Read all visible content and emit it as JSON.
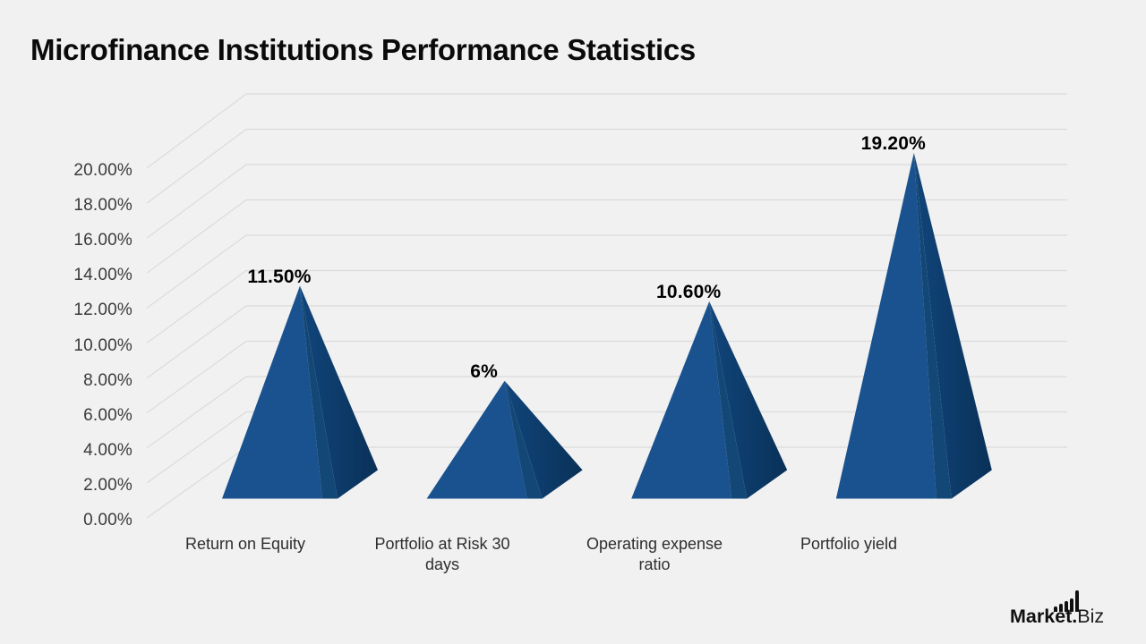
{
  "chart_data": {
    "type": "bar",
    "variant": "3d-pyramid",
    "title": "Microfinance Institutions Performance Statistics",
    "categories": [
      "Return on Equity",
      "Portfolio at Risk 30 days",
      "Operating expense ratio",
      "Portfolio yield"
    ],
    "values": [
      11.5,
      6,
      10.6,
      19.2
    ],
    "value_labels": [
      "11.50%",
      "6%",
      "10.60%",
      "19.20%"
    ],
    "xlabel": "",
    "ylabel": "",
    "ylim": [
      0,
      20
    ],
    "ytick_step": 2,
    "ytick_labels": [
      "0.00%",
      "2.00%",
      "4.00%",
      "6.00%",
      "8.00%",
      "10.00%",
      "12.00%",
      "14.00%",
      "16.00%",
      "18.00%",
      "20.00%"
    ],
    "grid": true,
    "legend": "none",
    "colors": {
      "background": "#F1F1F1",
      "grid": "#DBDBDB",
      "pyramid_front": "#1A528F",
      "pyramid_front_shade": "#134776",
      "pyramid_side_near": "#11457B",
      "pyramid_side_far": "#093158",
      "tick_text": "#3B3B3B",
      "category_text": "#2E2E2E",
      "value_text": "#000000",
      "title_text": "#0A0A0A",
      "logo_color": "#101010"
    }
  },
  "logo": {
    "brand_bold": "Market.",
    "brand_light": "Biz"
  }
}
